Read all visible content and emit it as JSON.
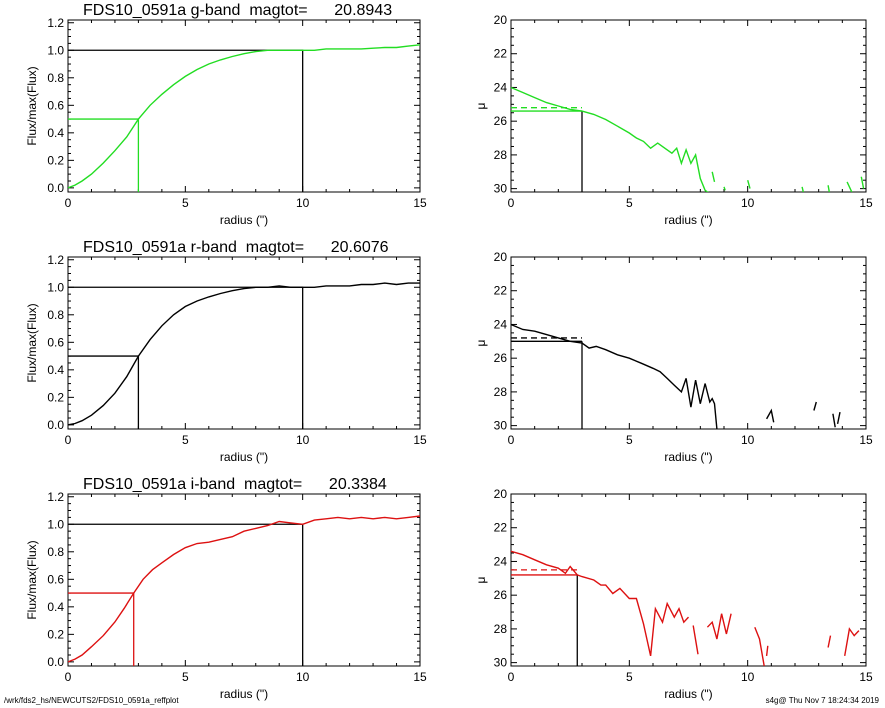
{
  "footer": {
    "path": "/wrk/fds2_hs/NEWCUTS2/FDS10_0591a_reffplot",
    "stamp": "s4g@  Thu Nov  7 18:24:34 2019"
  },
  "chart_data": [
    {
      "type": "line",
      "title": "FDS10_0591a g-band  magtot=      20.8943",
      "xlabel": "radius (\")",
      "ylabel": "Flux/max(Flux)",
      "xlim": [
        0,
        15
      ],
      "ylim": [
        -0.03,
        1.22
      ],
      "xticks": [
        "0",
        "5",
        "10",
        "15"
      ],
      "yticks": [
        "0.0",
        "0.2",
        "0.4",
        "0.6",
        "0.8",
        "1.0",
        "1.2"
      ],
      "color": "#22dd22",
      "series": [
        {
          "x": [
            0,
            0.3,
            0.6,
            1,
            1.5,
            2,
            2.5,
            3,
            3.5,
            4,
            4.5,
            5,
            5.5,
            6,
            6.5,
            7,
            7.5,
            8,
            8.5,
            9,
            9.5,
            10,
            10.5,
            11,
            11.5,
            12,
            12.5,
            13,
            13.5,
            14,
            14.5,
            15
          ],
          "values": [
            0,
            0.02,
            0.05,
            0.1,
            0.18,
            0.27,
            0.37,
            0.5,
            0.6,
            0.68,
            0.75,
            0.81,
            0.86,
            0.9,
            0.93,
            0.955,
            0.975,
            0.99,
            1.0,
            1.0,
            1.0,
            1.0,
            1.0,
            1.01,
            1.01,
            1.01,
            1.01,
            1.015,
            1.02,
            1.02,
            1.03,
            1.04
          ]
        }
      ],
      "marker_lines": {
        "half_light_x": 3.0,
        "half_light_y": 0.5,
        "total_x": 10.0,
        "total_y": 1.0
      }
    },
    {
      "type": "line",
      "title": "",
      "xlabel": "radius (\")",
      "ylabel": "μ",
      "xlim": [
        0,
        15
      ],
      "ylim": [
        20,
        30.2
      ],
      "y_inverted": true,
      "xticks": [
        "0",
        "5",
        "10",
        "15"
      ],
      "yticks": [
        "20",
        "22",
        "24",
        "26",
        "28",
        "30"
      ],
      "color": "#22dd22",
      "series": [
        {
          "segments": [
            {
              "x": [
                0,
                0.5,
                1,
                1.5,
                2,
                2.5,
                3,
                3.5,
                4,
                4.5,
                5,
                5.3,
                5.6,
                5.9,
                6.2,
                6.5,
                6.8,
                7.0,
                7.2,
                7.4,
                7.6,
                7.8,
                8.0,
                8.2,
                8.4
              ],
              "values": [
                24.0,
                24.3,
                24.6,
                24.9,
                25.1,
                25.3,
                25.4,
                25.6,
                25.9,
                26.3,
                26.7,
                27.0,
                27.2,
                27.6,
                27.3,
                27.6,
                27.9,
                27.6,
                28.5,
                27.7,
                28.5,
                28.0,
                29.4,
                30.1,
                30.3
              ]
            },
            {
              "x": [
                8.5,
                8.6
              ],
              "values": [
                29.0,
                29.6
              ]
            },
            {
              "x": [
                9.0,
                9.05
              ],
              "values": [
                29.9,
                30.1
              ]
            },
            {
              "x": [
                10.0,
                10.1
              ],
              "values": [
                29.5,
                30.0
              ]
            },
            {
              "x": [
                12.3,
                12.35
              ],
              "values": [
                29.9,
                30.2
              ]
            },
            {
              "x": [
                13.4,
                13.45
              ],
              "values": [
                29.8,
                30.2
              ]
            },
            {
              "x": [
                14.2,
                14.4
              ],
              "values": [
                29.6,
                30.2
              ]
            },
            {
              "x": [
                14.8,
                14.9
              ],
              "values": [
                29.3,
                30.0
              ]
            }
          ]
        }
      ],
      "marker_lines": {
        "x": 3.0,
        "solid_y": 25.4,
        "dashed_y": 25.2
      }
    },
    {
      "type": "line",
      "title": "FDS10_0591a r-band  magtot=      20.6076",
      "xlabel": "radius (\")",
      "ylabel": "Flux/max(Flux)",
      "xlim": [
        0,
        15
      ],
      "ylim": [
        -0.03,
        1.22
      ],
      "xticks": [
        "0",
        "5",
        "10",
        "15"
      ],
      "yticks": [
        "0.0",
        "0.2",
        "0.4",
        "0.6",
        "0.8",
        "1.0",
        "1.2"
      ],
      "color": "#000000",
      "series": [
        {
          "x": [
            0,
            0.3,
            0.6,
            1,
            1.5,
            2,
            2.5,
            3,
            3.5,
            4,
            4.5,
            5,
            5.5,
            6,
            6.5,
            7,
            7.5,
            8,
            8.5,
            9,
            9.5,
            10,
            10.5,
            11,
            11.5,
            12,
            12.5,
            13,
            13.5,
            14,
            14.5,
            15
          ],
          "values": [
            0,
            0.01,
            0.03,
            0.07,
            0.14,
            0.23,
            0.35,
            0.5,
            0.62,
            0.72,
            0.8,
            0.86,
            0.9,
            0.93,
            0.955,
            0.975,
            0.99,
            1.0,
            1.0,
            1.01,
            1.0,
            1.0,
            1.0,
            1.01,
            1.01,
            1.01,
            1.02,
            1.02,
            1.03,
            1.02,
            1.03,
            1.03
          ]
        }
      ],
      "marker_lines": {
        "half_light_x": 3.0,
        "half_light_y": 0.5,
        "total_x": 10.0,
        "total_y": 1.0
      }
    },
    {
      "type": "line",
      "title": "",
      "xlabel": "radius (\")",
      "ylabel": "μ",
      "xlim": [
        0,
        15
      ],
      "ylim": [
        20,
        30.2
      ],
      "y_inverted": true,
      "xticks": [
        "0",
        "5",
        "10",
        "15"
      ],
      "yticks": [
        "20",
        "22",
        "24",
        "26",
        "28",
        "30"
      ],
      "color": "#000000",
      "series": [
        {
          "segments": [
            {
              "x": [
                0,
                0.5,
                1,
                1.5,
                2,
                2.5,
                3,
                3.3,
                3.6,
                4,
                4.5,
                5,
                5.5,
                6,
                6.3,
                6.6,
                6.9,
                7.2,
                7.4,
                7.6,
                7.8,
                8.0,
                8.2,
                8.4,
                8.5,
                8.6,
                8.7
              ],
              "values": [
                24.0,
                24.3,
                24.4,
                24.6,
                24.8,
                25.0,
                25.1,
                25.4,
                25.3,
                25.5,
                25.8,
                26.0,
                26.3,
                26.6,
                26.8,
                27.2,
                27.6,
                28.0,
                27.2,
                28.9,
                27.3,
                28.7,
                27.5,
                28.6,
                28.4,
                28.7,
                30.2
              ]
            },
            {
              "x": [
                10.8,
                11.0,
                11.1
              ],
              "values": [
                29.6,
                29.1,
                29.8
              ]
            },
            {
              "x": [
                12.8,
                12.9
              ],
              "values": [
                29.1,
                28.6
              ]
            },
            {
              "x": [
                13.6,
                13.7
              ],
              "values": [
                29.3,
                30.1
              ]
            },
            {
              "x": [
                13.8,
                13.9
              ],
              "values": [
                29.9,
                29.2
              ]
            }
          ]
        }
      ],
      "marker_lines": {
        "x": 3.0,
        "solid_y": 25.0,
        "dashed_y": 24.8
      }
    },
    {
      "type": "line",
      "title": "FDS10_0591a i-band  magtot=      20.3384",
      "xlabel": "radius (\")",
      "ylabel": "Flux/max(Flux)",
      "xlim": [
        0,
        15
      ],
      "ylim": [
        -0.03,
        1.22
      ],
      "xticks": [
        "0",
        "5",
        "10",
        "15"
      ],
      "yticks": [
        "0.0",
        "0.2",
        "0.4",
        "0.6",
        "0.8",
        "1.0",
        "1.2"
      ],
      "color": "#dd1111",
      "series": [
        {
          "x": [
            0,
            0.3,
            0.6,
            1,
            1.5,
            2,
            2.4,
            2.8,
            3.2,
            3.6,
            4,
            4.5,
            5,
            5.5,
            6,
            6.5,
            7,
            7.5,
            8,
            8.5,
            9,
            9.5,
            10,
            10.5,
            11,
            11.5,
            12,
            12.5,
            13,
            13.5,
            14,
            14.5,
            15
          ],
          "values": [
            0,
            0.02,
            0.05,
            0.11,
            0.19,
            0.29,
            0.39,
            0.5,
            0.6,
            0.67,
            0.72,
            0.78,
            0.83,
            0.86,
            0.87,
            0.89,
            0.91,
            0.95,
            0.97,
            0.99,
            1.02,
            1.01,
            1.0,
            1.03,
            1.04,
            1.05,
            1.04,
            1.05,
            1.04,
            1.05,
            1.04,
            1.05,
            1.06
          ]
        }
      ],
      "marker_lines": {
        "half_light_x": 2.8,
        "half_light_y": 0.5,
        "total_x": 10.0,
        "total_y": 1.0
      }
    },
    {
      "type": "line",
      "title": "",
      "xlabel": "radius (\")",
      "ylabel": "μ",
      "xlim": [
        0,
        15
      ],
      "ylim": [
        20,
        30.2
      ],
      "y_inverted": true,
      "xticks": [
        "0",
        "5",
        "10",
        "15"
      ],
      "yticks": [
        "20",
        "22",
        "24",
        "26",
        "28",
        "30"
      ],
      "color": "#dd1111",
      "series": [
        {
          "segments": [
            {
              "x": [
                0,
                0.5,
                1,
                1.5,
                2,
                2.3,
                2.5,
                2.8,
                3,
                3.5,
                3.8,
                4.0,
                4.3,
                4.6,
                5.0,
                5.3,
                5.6,
                5.9,
                6.1,
                6.4,
                6.6,
                6.9,
                7.1,
                7.3,
                7.5
              ],
              "values": [
                23.4,
                23.6,
                23.9,
                24.2,
                24.4,
                24.7,
                24.3,
                24.8,
                24.9,
                25.1,
                25.4,
                25.4,
                25.9,
                25.6,
                26.2,
                26.2,
                27.7,
                29.6,
                26.8,
                27.6,
                26.5,
                27.3,
                26.8,
                27.6,
                27.3
              ]
            },
            {
              "x": [
                7.7,
                7.9
              ],
              "values": [
                27.8,
                29.5
              ]
            },
            {
              "x": [
                8.3,
                8.5,
                8.7,
                8.9,
                9.1,
                9.3
              ],
              "values": [
                27.9,
                27.6,
                28.6,
                27.1,
                28.3,
                27.1
              ]
            },
            {
              "x": [
                10.3,
                10.5,
                10.7
              ],
              "values": [
                27.9,
                28.6,
                30.2
              ]
            },
            {
              "x": [
                10.8,
                10.85
              ],
              "values": [
                29.6,
                29.0
              ]
            },
            {
              "x": [
                13.4,
                13.5
              ],
              "values": [
                29.1,
                28.4
              ]
            },
            {
              "x": [
                14.1,
                14.3,
                14.5,
                14.7
              ],
              "values": [
                29.6,
                28.0,
                28.4,
                28.1
              ]
            }
          ]
        }
      ],
      "marker_lines": {
        "x": 2.8,
        "solid_y": 24.8,
        "dashed_y": 24.5
      }
    }
  ]
}
